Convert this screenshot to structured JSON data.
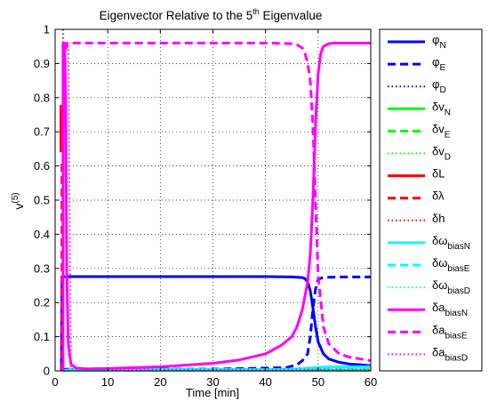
{
  "chart_data": {
    "type": "line",
    "title": "Eigenvector Relative to the 5",
    "title_sup": "th",
    "title_tail": " Eigenvalue",
    "xlabel": "Time [min]",
    "ylabel_base": "v",
    "ylabel_sup": "(5)",
    "xlim": [
      0,
      60
    ],
    "ylim": [
      0,
      1
    ],
    "xticks": [
      "0",
      "10",
      "20",
      "30",
      "40",
      "50",
      "60"
    ],
    "yticks": [
      "0",
      "0.1",
      "0.2",
      "0.3",
      "0.4",
      "0.5",
      "0.6",
      "0.7",
      "0.8",
      "0.9",
      "1"
    ],
    "grid": true,
    "legend_position": "right-outside",
    "series": [
      {
        "name": "φ",
        "sub": "N",
        "color": "#0000ff",
        "style": "solid",
        "x": [
          1.2,
          1.3,
          1.5,
          2.0,
          2.6,
          5,
          10,
          20,
          30,
          40,
          45,
          46,
          47,
          47.5,
          48,
          48.5,
          49,
          49.5,
          50,
          51,
          52,
          54,
          56,
          58,
          60
        ],
        "y": [
          0,
          0.275,
          0.275,
          0.276,
          0.276,
          0.276,
          0.276,
          0.276,
          0.276,
          0.276,
          0.275,
          0.274,
          0.273,
          0.27,
          0.26,
          0.235,
          0.185,
          0.13,
          0.085,
          0.05,
          0.035,
          0.025,
          0.02,
          0.018,
          0.015
        ]
      },
      {
        "name": "φ",
        "sub": "E",
        "color": "#0000ff",
        "style": "dashed",
        "x": [
          1.3,
          2.0,
          3.0,
          5,
          10,
          20,
          30,
          40,
          44,
          46,
          47,
          48,
          48.5,
          49,
          49.5,
          50,
          51,
          55,
          60
        ],
        "y": [
          0,
          0.005,
          0.005,
          0.005,
          0.005,
          0.005,
          0.005,
          0.008,
          0.01,
          0.018,
          0.03,
          0.05,
          0.1,
          0.18,
          0.24,
          0.268,
          0.274,
          0.275,
          0.275
        ]
      },
      {
        "name": "φ",
        "sub": "D",
        "color": "#0000ff",
        "style": "dotted",
        "x": [
          1.3,
          3,
          10,
          20,
          30,
          40,
          50,
          60
        ],
        "y": [
          0,
          0.003,
          0.003,
          0.003,
          0.003,
          0.003,
          0.003,
          0.003
        ]
      },
      {
        "name": "δv",
        "sub": "N",
        "color": "#00ff00",
        "style": "solid",
        "x": [
          1.3,
          3,
          10,
          20,
          30,
          40,
          50,
          60
        ],
        "y": [
          0,
          0.002,
          0.002,
          0.002,
          0.002,
          0.002,
          0.002,
          0.002
        ]
      },
      {
        "name": "δv",
        "sub": "E",
        "color": "#00ff00",
        "style": "dashed",
        "x": [
          1.3,
          3,
          10,
          20,
          30,
          40,
          50,
          60
        ],
        "y": [
          0,
          0.002,
          0.002,
          0.002,
          0.002,
          0.002,
          0.002,
          0.002
        ]
      },
      {
        "name": "δv",
        "sub": "D",
        "color": "#00ff00",
        "style": "dotted",
        "x": [
          1.3,
          3,
          10,
          20,
          30,
          40,
          50,
          60
        ],
        "y": [
          0,
          0.001,
          0.001,
          0.001,
          0.001,
          0.001,
          0.001,
          0.001
        ]
      },
      {
        "name": "δL",
        "sub": "",
        "color": "#ff0000",
        "style": "solid",
        "x": [
          1.1,
          1.1,
          1.2,
          1.2
        ],
        "y": [
          0.64,
          0.775,
          0.775,
          0.64
        ]
      },
      {
        "name": "δλ",
        "sub": "",
        "color": "#ff0000",
        "style": "dashed",
        "x": [
          1.3,
          1.3
        ],
        "y": [
          0,
          0.62
        ]
      },
      {
        "name": "δh",
        "sub": "",
        "color": "#ff0000",
        "style": "dotted",
        "x": [
          1.5,
          1.5
        ],
        "y": [
          0,
          1.0
        ]
      },
      {
        "name": "δω",
        "sub": "biasN",
        "color": "#00ffff",
        "style": "solid",
        "x": [
          1.3,
          3,
          10,
          20,
          30,
          40,
          45,
          48,
          50,
          52,
          55,
          60
        ],
        "y": [
          0,
          0.004,
          0.004,
          0.004,
          0.004,
          0.004,
          0.005,
          0.008,
          0.01,
          0.012,
          0.012,
          0.012
        ]
      },
      {
        "name": "δω",
        "sub": "biasE",
        "color": "#00ffff",
        "style": "dashed",
        "x": [
          1.3,
          3,
          10,
          20,
          30,
          40,
          45,
          48,
          50,
          55,
          60
        ],
        "y": [
          0,
          0.003,
          0.003,
          0.003,
          0.003,
          0.003,
          0.004,
          0.007,
          0.009,
          0.01,
          0.01
        ]
      },
      {
        "name": "δω",
        "sub": "biasD",
        "color": "#00ffff",
        "style": "dotted",
        "x": [
          1.3,
          3,
          10,
          20,
          30,
          40,
          50,
          60
        ],
        "y": [
          0,
          0.002,
          0.002,
          0.002,
          0.002,
          0.002,
          0.004,
          0.004
        ]
      },
      {
        "name": "δa",
        "sub": "biasN",
        "color": "#ff00ff",
        "style": "solid",
        "x": [
          1.5,
          1.5,
          1.8,
          2.0,
          2.2,
          2.5,
          3.0,
          4.0,
          6,
          10,
          20,
          30,
          35,
          40,
          43,
          45,
          46,
          47,
          48,
          48.5,
          49,
          49.5,
          50,
          50.5,
          51,
          52,
          53,
          55,
          60
        ],
        "y": [
          0,
          0.96,
          0.96,
          0.8,
          0.3,
          0.08,
          0.02,
          0.008,
          0.006,
          0.007,
          0.012,
          0.022,
          0.032,
          0.05,
          0.075,
          0.1,
          0.13,
          0.18,
          0.26,
          0.34,
          0.5,
          0.72,
          0.87,
          0.93,
          0.95,
          0.958,
          0.96,
          0.96,
          0.96
        ]
      },
      {
        "name": "δa",
        "sub": "biasE",
        "color": "#ff00ff",
        "style": "dashed",
        "x": [
          2.0,
          2.3,
          3,
          10,
          20,
          30,
          40,
          45,
          46,
          47,
          47.5,
          48,
          48.5,
          49,
          49.5,
          50,
          51,
          52,
          54,
          56,
          58,
          60
        ],
        "y": [
          0.94,
          0.96,
          0.96,
          0.96,
          0.96,
          0.96,
          0.96,
          0.958,
          0.955,
          0.945,
          0.93,
          0.9,
          0.85,
          0.72,
          0.5,
          0.28,
          0.13,
          0.08,
          0.05,
          0.04,
          0.035,
          0.03
        ]
      },
      {
        "name": "δa",
        "sub": "biasD",
        "color": "#ff00ff",
        "style": "dotted",
        "x": [
          1.6,
          1.6,
          2.5,
          3,
          10,
          20,
          30,
          40,
          50,
          60
        ],
        "y": [
          0,
          0.95,
          0.95,
          0.006,
          0.004,
          0.004,
          0.004,
          0.004,
          0.004,
          0.004
        ]
      }
    ]
  }
}
